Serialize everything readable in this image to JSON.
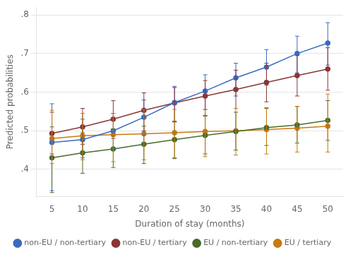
{
  "chart_data": {
    "type": "line",
    "xlabel": "Duration of stay (months)",
    "ylabel": "Predicted probabilities",
    "x": [
      5,
      10,
      15,
      20,
      25,
      30,
      35,
      40,
      45,
      50
    ],
    "series": [
      {
        "name": "non-EU / non-tertiary",
        "color": "#3a6bbf",
        "values": [
          0.47,
          0.477,
          0.5,
          0.535,
          0.573,
          0.603,
          0.637,
          0.665,
          0.7,
          0.727
        ],
        "lower": [
          0.345,
          0.43,
          0.455,
          0.49,
          0.525,
          0.555,
          0.59,
          0.618,
          0.65,
          0.67
        ],
        "upper": [
          0.57,
          0.53,
          0.545,
          0.58,
          0.615,
          0.645,
          0.675,
          0.71,
          0.745,
          0.78
        ]
      },
      {
        "name": "non-EU / tertiary",
        "color": "#8b3535",
        "values": [
          0.493,
          0.51,
          0.53,
          0.553,
          0.572,
          0.59,
          0.607,
          0.625,
          0.643,
          0.66
        ],
        "lower": [
          0.44,
          0.465,
          0.48,
          0.5,
          0.523,
          0.54,
          0.558,
          0.575,
          0.59,
          0.605
        ],
        "upper": [
          0.548,
          0.558,
          0.578,
          0.598,
          0.612,
          0.63,
          0.657,
          0.675,
          0.695,
          0.715
        ]
      },
      {
        "name": "EU / non-tertiary",
        "color": "#4a6b2a",
        "values": [
          0.43,
          0.443,
          0.453,
          0.465,
          0.477,
          0.488,
          0.498,
          0.508,
          0.515,
          0.527
        ],
        "lower": [
          0.34,
          0.39,
          0.405,
          0.415,
          0.428,
          0.44,
          0.45,
          0.462,
          0.468,
          0.475
        ],
        "upper": [
          0.51,
          0.495,
          0.505,
          0.512,
          0.523,
          0.538,
          0.548,
          0.558,
          0.563,
          0.578
        ]
      },
      {
        "name": "EU / tertiary",
        "color": "#c87a10",
        "values": [
          0.48,
          0.487,
          0.49,
          0.492,
          0.495,
          0.498,
          0.5,
          0.503,
          0.507,
          0.512
        ],
        "lower": [
          0.415,
          0.425,
          0.42,
          0.425,
          0.43,
          0.433,
          0.437,
          0.44,
          0.445,
          0.445
        ],
        "upper": [
          0.553,
          0.545,
          0.545,
          0.555,
          0.555,
          0.555,
          0.558,
          0.56,
          0.563,
          0.595
        ]
      }
    ],
    "xlim": [
      2.5,
      52.5
    ],
    "xticks": [
      5,
      10,
      15,
      20,
      25,
      30,
      35,
      40,
      45,
      50
    ],
    "ylim": [
      0.33,
      0.82
    ],
    "yticks": [
      {
        "value": 0.4,
        "label": ".4"
      },
      {
        "value": 0.5,
        "label": ".5"
      },
      {
        "value": 0.6,
        "label": ".6"
      },
      {
        "value": 0.7,
        "label": ".7"
      },
      {
        "value": 0.8,
        "label": ".8"
      }
    ],
    "grid": "y",
    "legend": "bottom",
    "marker": "circle"
  }
}
